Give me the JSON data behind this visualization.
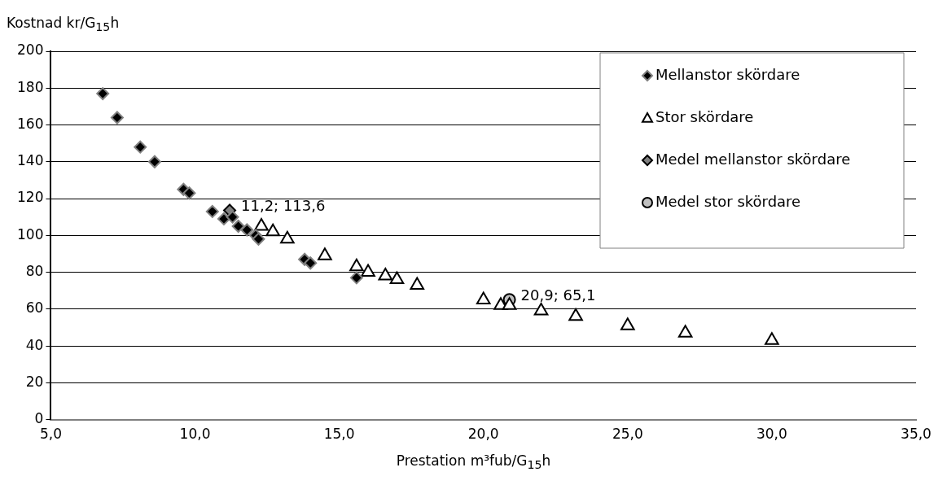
{
  "chart_data": {
    "type": "scatter",
    "xlabel": "Prestation m³fub/G$_{15}$h",
    "ylabel": "Kostnad kr/G$_{15}$h",
    "series": [
      {
        "name": "Mellanstor skördare",
        "color": "#000000",
        "marker": "diamond",
        "x": [
          6.8,
          7.3,
          8.1,
          8.6,
          9.6,
          9.8,
          10.6,
          11.0,
          11.3,
          11.5,
          11.8,
          12.1,
          12.2,
          13.8,
          14.0,
          15.6
        ],
        "values": [
          177,
          164,
          148,
          140,
          125,
          123,
          113,
          109,
          110,
          105,
          103,
          100,
          98,
          87,
          85,
          77
        ]
      },
      {
        "name": "Stor skördare",
        "color": "#ffffff",
        "marker": "triangle",
        "x": [
          12.3,
          12.7,
          13.2,
          14.5,
          15.6,
          16.0,
          16.6,
          17.0,
          17.7,
          20.0,
          20.6,
          20.9,
          22.0,
          23.2,
          25.0,
          27.0,
          30.0
        ],
        "values": [
          105,
          102,
          98,
          89,
          83,
          80,
          78,
          76,
          73,
          65,
          62,
          62,
          59,
          56,
          51,
          47,
          43
        ]
      },
      {
        "name": "Medel mellanstor skördare",
        "color": "#808080",
        "marker": "diamond",
        "x": [
          11.2
        ],
        "values": [
          113.6
        ]
      },
      {
        "name": "Medel stor skördare",
        "color": "#c0c0c0",
        "marker": "circle",
        "x": [
          20.9
        ],
        "values": [
          65.1
        ]
      }
    ],
    "annotations": [
      {
        "text": "11,2; 113,6",
        "x": 11.2,
        "y": 113.6
      },
      {
        "text": "20,9; 65,1",
        "x": 20.9,
        "y": 65.1
      }
    ],
    "xlim": [
      5,
      35
    ],
    "xticks": [
      {
        "value": 5,
        "label": "5,0"
      },
      {
        "value": 10,
        "label": "10,0"
      },
      {
        "value": 15,
        "label": "15,0"
      },
      {
        "value": 20,
        "label": "20,0"
      },
      {
        "value": 25,
        "label": "25,0"
      },
      {
        "value": 30,
        "label": "30,0"
      },
      {
        "value": 35,
        "label": "35,0"
      }
    ],
    "ylim": [
      0,
      200
    ],
    "yticks": [
      0,
      20,
      40,
      60,
      80,
      100,
      120,
      140,
      160,
      180,
      200
    ],
    "grid": "y",
    "legend": "top right"
  }
}
